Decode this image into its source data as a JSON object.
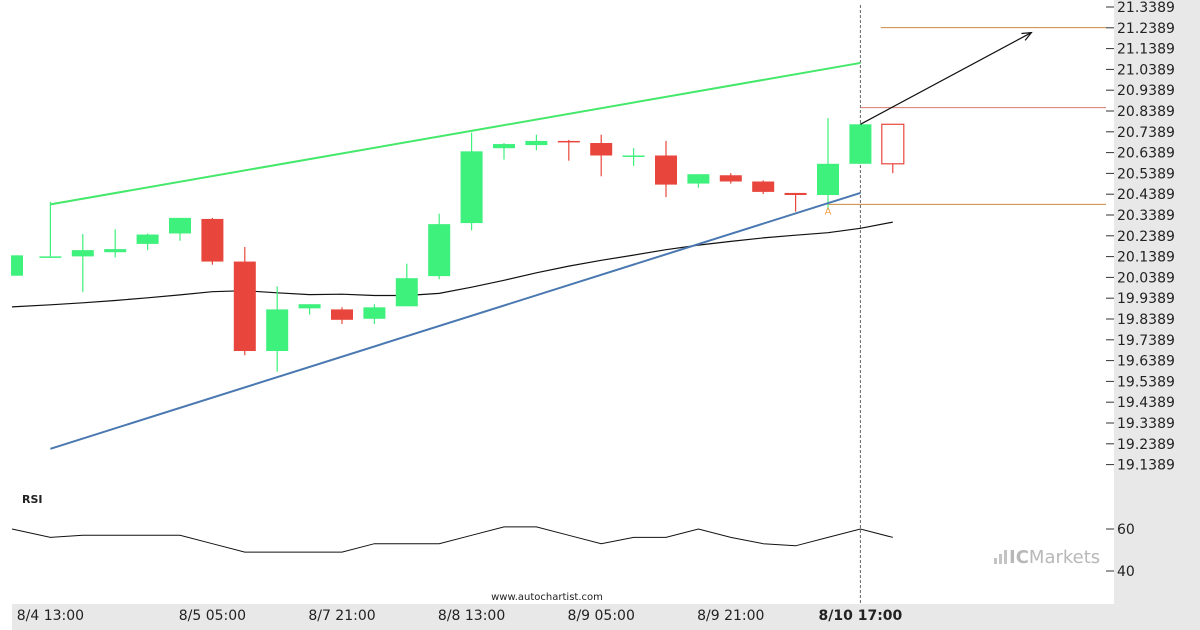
{
  "chart_data": {
    "type": "candlestick",
    "y_ticks": [
      "21.3389",
      "21.2389",
      "21.1389",
      "21.0389",
      "20.9389",
      "20.8389",
      "20.7389",
      "20.6389",
      "20.5389",
      "20.4389",
      "20.3389",
      "20.2389",
      "20.1389",
      "20.0389",
      "19.9389",
      "19.8389",
      "19.7389",
      "19.6389",
      "19.5389",
      "19.4389",
      "19.3389",
      "19.2389",
      "19.1389"
    ],
    "x_labels": [
      "8/4 13:00",
      "8/5 05:00",
      "8/7 21:00",
      "8/8 13:00",
      "8/9 05:00",
      "8/9 21:00",
      "8/10 17:00"
    ],
    "x_label_bar_index": [
      1,
      6,
      10,
      14,
      18,
      22,
      26
    ],
    "highlight_x_label": "8/10 17:00",
    "candles": [
      {
        "o": 20.047,
        "h": 20.145,
        "l": 20.047,
        "c": 20.145
      },
      {
        "o": 20.14,
        "h": 20.402,
        "l": 20.14,
        "c": 20.14
      },
      {
        "o": 20.14,
        "h": 20.248,
        "l": 19.968,
        "c": 20.17
      },
      {
        "o": 20.16,
        "h": 20.27,
        "l": 20.135,
        "c": 20.175
      },
      {
        "o": 20.2,
        "h": 20.25,
        "l": 20.17,
        "c": 20.245
      },
      {
        "o": 20.25,
        "h": 20.32,
        "l": 20.215,
        "c": 20.325
      },
      {
        "o": 20.32,
        "h": 20.325,
        "l": 20.1,
        "c": 20.115
      },
      {
        "o": 20.115,
        "h": 20.185,
        "l": 19.665,
        "c": 19.685
      },
      {
        "o": 19.685,
        "h": 19.995,
        "l": 19.585,
        "c": 19.885
      },
      {
        "o": 19.89,
        "h": 19.91,
        "l": 19.86,
        "c": 19.91
      },
      {
        "o": 19.885,
        "h": 19.895,
        "l": 19.815,
        "c": 19.835
      },
      {
        "o": 19.84,
        "h": 19.91,
        "l": 19.815,
        "c": 19.895
      },
      {
        "o": 19.9,
        "h": 20.105,
        "l": 19.9,
        "c": 20.035
      },
      {
        "o": 20.045,
        "h": 20.345,
        "l": 20.03,
        "c": 20.295
      },
      {
        "o": 20.3,
        "h": 20.735,
        "l": 20.265,
        "c": 20.645
      },
      {
        "o": 20.66,
        "h": 20.685,
        "l": 20.605,
        "c": 20.68
      },
      {
        "o": 20.675,
        "h": 20.725,
        "l": 20.65,
        "c": 20.695
      },
      {
        "o": 20.695,
        "h": 20.7,
        "l": 20.6,
        "c": 20.69
      },
      {
        "o": 20.685,
        "h": 20.725,
        "l": 20.525,
        "c": 20.625
      },
      {
        "o": 20.625,
        "h": 20.66,
        "l": 20.575,
        "c": 20.625
      },
      {
        "o": 20.625,
        "h": 20.695,
        "l": 20.425,
        "c": 20.485
      },
      {
        "o": 20.49,
        "h": 20.535,
        "l": 20.47,
        "c": 20.535
      },
      {
        "o": 20.53,
        "h": 20.54,
        "l": 20.49,
        "c": 20.5
      },
      {
        "o": 20.5,
        "h": 20.505,
        "l": 20.44,
        "c": 20.45
      },
      {
        "o": 20.445,
        "h": 20.445,
        "l": 20.355,
        "c": 20.435
      },
      {
        "o": 20.435,
        "h": 20.805,
        "l": 20.365,
        "c": 20.585
      },
      {
        "o": 20.585,
        "h": 20.78,
        "l": 20.585,
        "c": 20.775
      },
      {
        "o": 20.775,
        "h": 20.775,
        "l": 20.54,
        "c": 20.585
      }
    ],
    "moving_average": [
      19.897,
      19.907,
      19.917,
      19.928,
      19.941,
      19.955,
      19.97,
      19.975,
      19.965,
      19.956,
      19.958,
      19.952,
      19.952,
      19.962,
      19.992,
      20.025,
      20.061,
      20.093,
      20.121,
      20.146,
      20.172,
      20.194,
      20.212,
      20.229,
      20.242,
      20.254,
      20.275,
      20.305
    ],
    "upper_trendline": {
      "from": {
        "bar": 1,
        "value": 20.39
      },
      "to": {
        "bar": 26,
        "value": 21.07
      }
    },
    "lower_trendline": {
      "from": {
        "bar": 1,
        "value": 19.215
      },
      "to": {
        "bar": 26,
        "value": 20.445
      }
    },
    "projection_arrow": {
      "from": {
        "bar": 26,
        "value": 20.775
      },
      "to": {
        "bar": 31,
        "value": 21.24
      }
    },
    "target_line_value": 21.24,
    "resistance_line_value": 20.855,
    "support_line_value": 20.39,
    "marker_label": "A",
    "marker_bar": 25,
    "rsi": {
      "label": "RSI",
      "ticks": [
        "60",
        "40"
      ],
      "values": [
        60,
        56,
        57,
        57,
        57,
        57,
        53,
        49,
        49,
        49,
        49,
        53,
        53,
        53,
        57,
        61,
        61,
        57,
        53,
        56,
        56,
        60,
        56,
        53,
        52,
        56,
        60,
        56
      ]
    },
    "watermark": "www.autochartist.com",
    "brand": {
      "prefix": "IC",
      "name": "Markets"
    },
    "colors": {
      "bull": "#3ef07c",
      "bear": "#e8463c",
      "upper_trendline": "#44e86a",
      "lower_trendline": "#4a78b0",
      "ma": "#111111",
      "horizontal_lines": "#c98a3c",
      "axis_bg": "#e8e8e8"
    }
  }
}
